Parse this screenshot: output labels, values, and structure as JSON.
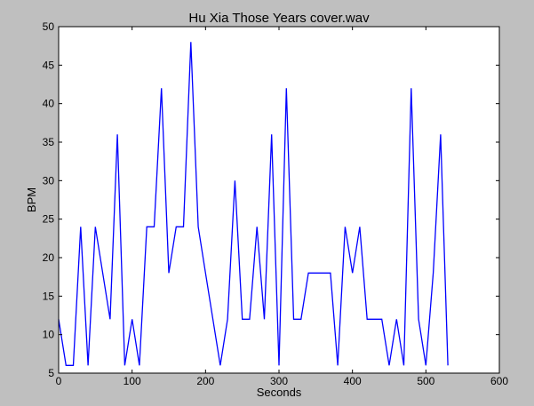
{
  "chart_data": {
    "type": "line",
    "title": "Hu Xia Those Years cover.wav",
    "xlabel": "Seconds",
    "ylabel": "BPM",
    "xlim": [
      0,
      600
    ],
    "ylim": [
      5,
      50
    ],
    "xticks": [
      0,
      100,
      200,
      300,
      400,
      500,
      600
    ],
    "yticks": [
      5,
      10,
      15,
      20,
      25,
      30,
      35,
      40,
      45,
      50
    ],
    "grid": false,
    "series": [
      {
        "color": "#0000ff",
        "x": [
          0,
          10,
          20,
          30,
          40,
          50,
          60,
          70,
          80,
          90,
          100,
          110,
          120,
          130,
          140,
          150,
          160,
          170,
          180,
          190,
          200,
          210,
          220,
          230,
          240,
          250,
          260,
          270,
          280,
          290,
          300,
          310,
          320,
          330,
          340,
          350,
          360,
          370,
          380,
          390,
          400,
          410,
          420,
          430,
          440,
          450,
          460,
          470,
          480,
          490,
          500,
          510,
          520,
          530
        ],
        "y": [
          12,
          6,
          6,
          24,
          6,
          24,
          18,
          12,
          36,
          6,
          12,
          6,
          24,
          24,
          42,
          18,
          24,
          24,
          48,
          24,
          18,
          12,
          6,
          12,
          30,
          12,
          12,
          24,
          12,
          36,
          6,
          42,
          12,
          12,
          18,
          18,
          18,
          18,
          6,
          24,
          18,
          24,
          12,
          12,
          12,
          6,
          12,
          6,
          42,
          12,
          6,
          18,
          36,
          6
        ]
      }
    ]
  }
}
